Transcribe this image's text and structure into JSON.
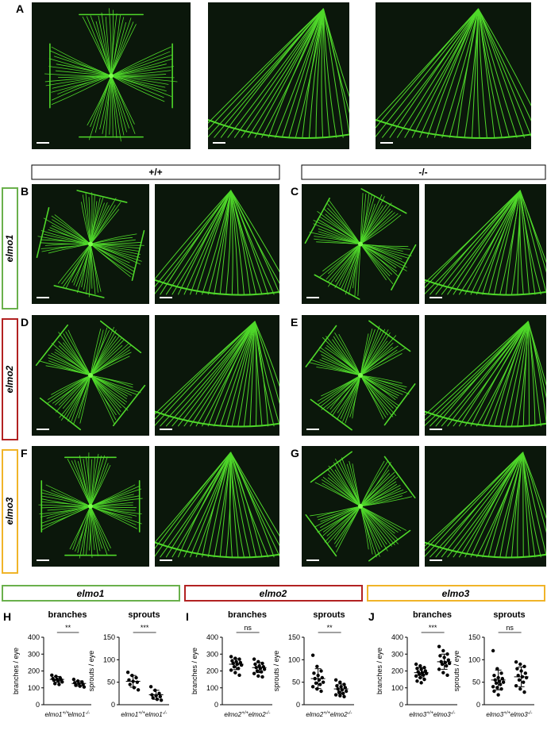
{
  "figure": {
    "panel_labels": [
      "A",
      "B",
      "C",
      "D",
      "E",
      "F",
      "G",
      "H",
      "I",
      "J"
    ],
    "genotype_headers": [
      "+/+",
      "-/-"
    ],
    "row_labels": [
      "elmo1",
      "elmo2",
      "elmo3"
    ],
    "chart_headers": [
      "elmo1",
      "elmo2",
      "elmo3"
    ]
  },
  "chart_data": [
    {
      "type": "strip",
      "title": "branches",
      "y_label": "branches / eye",
      "ylim": [
        0,
        400
      ],
      "yticks": [
        0,
        100,
        200,
        300,
        400
      ],
      "significance": "**",
      "categories": [
        {
          "gene": "elmo1",
          "genotype": "+/+"
        },
        {
          "gene": "elmo1",
          "genotype": "-/-"
        }
      ],
      "series": [
        {
          "color": "#000000",
          "values": [
            175,
            168,
            160,
            155,
            150,
            148,
            145,
            140,
            135,
            125,
            120
          ],
          "mean": 150,
          "sd": 17
        },
        {
          "color": "#000000",
          "values": [
            150,
            140,
            135,
            130,
            125,
            120,
            115,
            110,
            105
          ],
          "mean": 126,
          "sd": 15
        }
      ]
    },
    {
      "type": "strip",
      "title": "sprouts",
      "y_label": "sprouts / eye",
      "ylim": [
        0,
        150
      ],
      "yticks": [
        0,
        50,
        100,
        150
      ],
      "significance": "***",
      "categories": [
        {
          "gene": "elmo1",
          "genotype": "+/+"
        },
        {
          "gene": "elmo1",
          "genotype": "-/-"
        }
      ],
      "series": [
        {
          "color": "#000000",
          "values": [
            72,
            65,
            60,
            55,
            52,
            50,
            45,
            38,
            33
          ],
          "mean": 52,
          "sd": 13
        },
        {
          "color": "#000000",
          "values": [
            40,
            32,
            25,
            22,
            20,
            18,
            15,
            12,
            10
          ],
          "mean": 22,
          "sd": 10
        }
      ]
    },
    {
      "type": "strip",
      "title": "branches",
      "y_label": "branches / eye",
      "ylim": [
        0,
        400
      ],
      "yticks": [
        0,
        100,
        200,
        300,
        400
      ],
      "significance": "ns",
      "categories": [
        {
          "gene": "elmo2",
          "genotype": "+/+"
        },
        {
          "gene": "elmo2",
          "genotype": "-/-"
        }
      ],
      "series": [
        {
          "color": "#000000",
          "values": [
            285,
            275,
            270,
            260,
            255,
            250,
            245,
            240,
            235,
            225,
            215,
            205,
            190,
            175
          ],
          "mean": 240,
          "sd": 32
        },
        {
          "color": "#000000",
          "values": [
            270,
            255,
            245,
            240,
            230,
            225,
            220,
            215,
            210,
            200,
            195,
            185,
            170,
            165
          ],
          "mean": 220,
          "sd": 30
        }
      ]
    },
    {
      "type": "strip",
      "title": "sprouts",
      "y_label": "sprouts / eye",
      "ylim": [
        0,
        150
      ],
      "yticks": [
        0,
        50,
        100,
        150
      ],
      "significance": "**",
      "categories": [
        {
          "gene": "elmo2",
          "genotype": "+/+"
        },
        {
          "gene": "elmo2",
          "genotype": "-/-"
        }
      ],
      "series": [
        {
          "color": "#000000",
          "values": [
            110,
            85,
            75,
            70,
            65,
            60,
            58,
            55,
            50,
            48,
            45,
            40,
            35,
            30
          ],
          "mean": 58,
          "sd": 22
        },
        {
          "color": "#000000",
          "values": [
            55,
            50,
            45,
            42,
            40,
            38,
            35,
            33,
            30,
            28,
            25,
            22,
            20,
            18
          ],
          "mean": 35,
          "sd": 11
        }
      ]
    },
    {
      "type": "strip",
      "title": "branches",
      "y_label": "branches / eye",
      "ylim": [
        0,
        400
      ],
      "yticks": [
        0,
        100,
        200,
        300,
        400
      ],
      "significance": "***",
      "categories": [
        {
          "gene": "elmo3",
          "genotype": "+/+"
        },
        {
          "gene": "elmo3",
          "genotype": "-/-"
        }
      ],
      "series": [
        {
          "color": "#000000",
          "values": [
            240,
            230,
            220,
            215,
            210,
            200,
            195,
            190,
            185,
            180,
            175,
            170,
            160,
            150,
            140,
            130
          ],
          "mean": 190,
          "sd": 30
        },
        {
          "color": "#000000",
          "values": [
            345,
            320,
            300,
            290,
            280,
            265,
            255,
            250,
            245,
            240,
            230,
            210,
            190,
            175
          ],
          "mean": 255,
          "sd": 45
        }
      ]
    },
    {
      "type": "strip",
      "title": "sprouts",
      "y_label": "sprouts / eye",
      "ylim": [
        0,
        150
      ],
      "yticks": [
        0,
        50,
        100,
        150
      ],
      "significance": "ns",
      "categories": [
        {
          "gene": "elmo3",
          "genotype": "+/+"
        },
        {
          "gene": "elmo3",
          "genotype": "-/-"
        }
      ],
      "series": [
        {
          "color": "#000000",
          "values": [
            120,
            80,
            70,
            65,
            60,
            58,
            55,
            52,
            50,
            48,
            45,
            40,
            38,
            35,
            30,
            22
          ],
          "mean": 55,
          "sd": 22
        },
        {
          "color": "#000000",
          "values": [
            95,
            90,
            85,
            80,
            75,
            70,
            65,
            62,
            60,
            55,
            50,
            42,
            35,
            28
          ],
          "mean": 62,
          "sd": 22
        }
      ]
    }
  ]
}
